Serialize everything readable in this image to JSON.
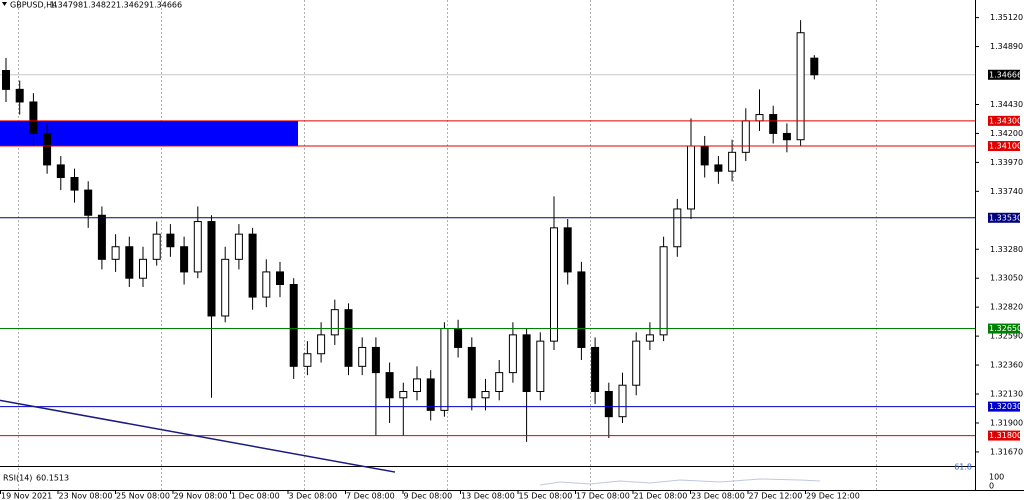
{
  "chart_data": {
    "type": "candlestick",
    "symbol": "GBPUSD,H4",
    "ylim": [
      1.3159,
      1.3526
    ],
    "yticks": [
      {
        "value": 1.3512,
        "label": "1.35120"
      },
      {
        "value": 1.3489,
        "label": "1.34890"
      },
      {
        "value": 1.3443,
        "label": "1.34430"
      },
      {
        "value": 1.342,
        "label": "1.34200"
      },
      {
        "value": 1.3397,
        "label": "1.33970"
      },
      {
        "value": 1.3374,
        "label": "1.33740"
      },
      {
        "value": 1.3328,
        "label": "1.33280"
      },
      {
        "value": 1.3305,
        "label": "1.33050"
      },
      {
        "value": 1.3282,
        "label": "1.32820"
      },
      {
        "value": 1.3259,
        "label": "1.32590"
      },
      {
        "value": 1.3236,
        "label": "1.32360"
      },
      {
        "value": 1.3213,
        "label": "1.32130"
      },
      {
        "value": 1.319,
        "label": "1.31900"
      },
      {
        "value": 1.3167,
        "label": "1.31670"
      }
    ],
    "time_labels": [
      "19 Nov 2021",
      "23 Nov 08:00",
      "25 Nov 08:00",
      "29 Nov 08:00",
      "1 Dec 08:00",
      "3 Dec 08:00",
      "7 Dec 08:00",
      "9 Dec 08:00",
      "13 Dec 08:00",
      "15 Dec 08:00",
      "17 Dec 08:00",
      "21 Dec 08:00",
      "23 Dec 08:00",
      "27 Dec 12:00",
      "29 Dec 12:00"
    ],
    "candles": {
      "open": [
        1.347,
        1.3455,
        1.3445,
        1.342,
        1.3395,
        1.3385,
        1.3375,
        1.3355,
        1.332,
        1.333,
        1.3305,
        1.332,
        1.334,
        1.333,
        1.331,
        1.335,
        1.3275,
        1.332,
        1.334,
        1.329,
        1.331,
        1.33,
        1.3235,
        1.3245,
        1.326,
        1.328,
        1.3235,
        1.325,
        1.323,
        1.321,
        1.3215,
        1.3225,
        1.32,
        1.3265,
        1.325,
        1.321,
        1.3215,
        1.323,
        1.326,
        1.3215,
        1.3255,
        1.3345,
        1.331,
        1.325,
        1.3215,
        1.3195,
        1.322,
        1.3255,
        1.326,
        1.333,
        1.336,
        1.341,
        1.3395,
        1.339,
        1.3405,
        1.343,
        1.3435,
        1.342,
        1.3415,
        1.34798
      ],
      "high": [
        1.348,
        1.3462,
        1.3452,
        1.3428,
        1.3402,
        1.3392,
        1.3382,
        1.3362,
        1.334,
        1.3338,
        1.333,
        1.335,
        1.3348,
        1.3338,
        1.3362,
        1.3355,
        1.333,
        1.3348,
        1.3345,
        1.332,
        1.3318,
        1.3305,
        1.3255,
        1.327,
        1.3288,
        1.3285,
        1.3258,
        1.3258,
        1.3238,
        1.3222,
        1.3235,
        1.3232,
        1.327,
        1.3272,
        1.3258,
        1.3225,
        1.324,
        1.327,
        1.3265,
        1.3262,
        1.337,
        1.3352,
        1.3318,
        1.3258,
        1.3222,
        1.323,
        1.3262,
        1.327,
        1.3338,
        1.3368,
        1.3432,
        1.3418,
        1.3402,
        1.3415,
        1.344,
        1.3455,
        1.3442,
        1.3428,
        1.351,
        1.34822
      ],
      "low": [
        1.3445,
        1.3435,
        1.341,
        1.3388,
        1.3375,
        1.3365,
        1.3345,
        1.3312,
        1.331,
        1.3298,
        1.3298,
        1.3315,
        1.3322,
        1.33,
        1.3305,
        1.321,
        1.327,
        1.3312,
        1.328,
        1.3282,
        1.329,
        1.3225,
        1.3228,
        1.3238,
        1.3252,
        1.3228,
        1.3228,
        1.318,
        1.319,
        1.318,
        1.3208,
        1.3192,
        1.3195,
        1.3242,
        1.32,
        1.32,
        1.3208,
        1.3222,
        1.3175,
        1.3208,
        1.3248,
        1.33,
        1.324,
        1.3205,
        1.3178,
        1.319,
        1.3212,
        1.3248,
        1.3255,
        1.3322,
        1.3352,
        1.3385,
        1.338,
        1.3382,
        1.3398,
        1.3422,
        1.3412,
        1.3405,
        1.341,
        1.34629
      ],
      "close": [
        1.3455,
        1.3445,
        1.342,
        1.3395,
        1.3385,
        1.3375,
        1.3355,
        1.332,
        1.333,
        1.3305,
        1.332,
        1.334,
        1.333,
        1.331,
        1.335,
        1.3275,
        1.332,
        1.334,
        1.329,
        1.331,
        1.33,
        1.3235,
        1.3245,
        1.326,
        1.328,
        1.3235,
        1.325,
        1.323,
        1.321,
        1.3215,
        1.3225,
        1.32,
        1.3265,
        1.325,
        1.321,
        1.3215,
        1.323,
        1.326,
        1.3215,
        1.3255,
        1.3345,
        1.331,
        1.325,
        1.3215,
        1.3195,
        1.322,
        1.3255,
        1.326,
        1.333,
        1.336,
        1.341,
        1.3395,
        1.339,
        1.3405,
        1.343,
        1.3435,
        1.342,
        1.3415,
        1.35,
        1.34666
      ]
    },
    "levels": [
      {
        "value": 1.343,
        "label": "1.34300",
        "color": "#e00000"
      },
      {
        "value": 1.341,
        "label": "1.34100",
        "color": "#e00000"
      },
      {
        "value": 1.3353,
        "label": "1.33530",
        "color": "#000080"
      },
      {
        "value": 1.3265,
        "label": "1.32650",
        "color": "#008000"
      },
      {
        "value": 1.3203,
        "label": "1.32030",
        "color": "#0000cc"
      },
      {
        "value": 1.318,
        "label": "1.31800",
        "color": "#e00000"
      }
    ],
    "current_price": {
      "value": 1.34666,
      "label": "1.34666"
    },
    "zone": {
      "from": 1.343,
      "to": 1.341,
      "color": "#0000ff"
    },
    "trendline": {
      "start": 1.3208,
      "end": 1.3151,
      "color": "#1a1a80"
    },
    "rsi": {
      "name": "RSI(14)",
      "value": 60.1513,
      "level": "61.8",
      "max": "100",
      "min": "0"
    }
  }
}
